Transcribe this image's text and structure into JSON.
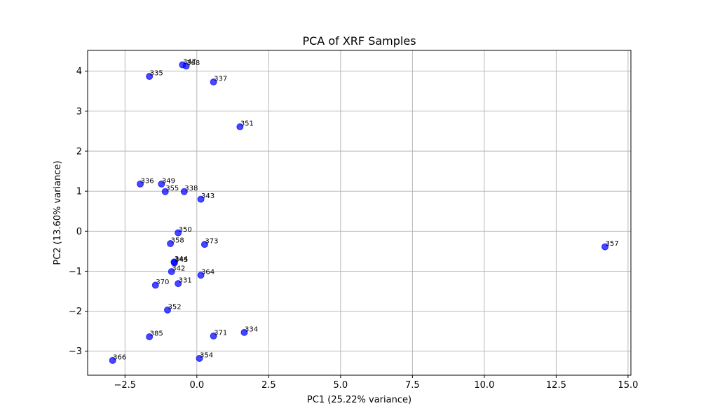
{
  "chart_data": {
    "type": "scatter",
    "title": "PCA of XRF Samples",
    "xlabel": "PC1 (25.22% variance)",
    "ylabel": "PC2 (13.60% variance)",
    "xlim": [
      -3.8,
      15.1
    ],
    "ylim": [
      -3.6,
      4.52
    ],
    "xticks": [
      -2.5,
      0.0,
      2.5,
      5.0,
      7.5,
      10.0,
      12.5,
      15.0
    ],
    "xtick_labels": [
      "−2.5",
      "0.0",
      "2.5",
      "5.0",
      "7.5",
      "10.0",
      "12.5",
      "15.0"
    ],
    "yticks": [
      -3,
      -2,
      -1,
      0,
      1,
      2,
      3,
      4
    ],
    "ytick_labels": [
      "−3",
      "−2",
      "−1",
      "0",
      "1",
      "2",
      "3",
      "4"
    ],
    "grid": true,
    "marker_color": "#0000ff",
    "points": [
      {
        "label": "347",
        "x": -0.5,
        "y": 4.16
      },
      {
        "label": "368",
        "x": -0.37,
        "y": 4.13
      },
      {
        "label": "335",
        "x": -1.65,
        "y": 3.87
      },
      {
        "label": "337",
        "x": 0.58,
        "y": 3.73
      },
      {
        "label": "351",
        "x": 1.5,
        "y": 2.61
      },
      {
        "label": "336",
        "x": -1.97,
        "y": 1.18
      },
      {
        "label": "349",
        "x": -1.23,
        "y": 1.18
      },
      {
        "label": "355",
        "x": -1.1,
        "y": 0.99
      },
      {
        "label": "338",
        "x": -0.44,
        "y": 0.99
      },
      {
        "label": "343",
        "x": 0.14,
        "y": 0.8
      },
      {
        "label": "350",
        "x": -0.65,
        "y": -0.04
      },
      {
        "label": "358",
        "x": -0.92,
        "y": -0.31
      },
      {
        "label": "373",
        "x": 0.27,
        "y": -0.33
      },
      {
        "label": "357",
        "x": 14.2,
        "y": -0.39
      },
      {
        "label": "344",
        "x": -0.79,
        "y": -0.77
      },
      {
        "label": "345",
        "x": -0.78,
        "y": -0.79
      },
      {
        "label": "342",
        "x": -0.88,
        "y": -1.01
      },
      {
        "label": "364",
        "x": 0.14,
        "y": -1.1
      },
      {
        "label": "370",
        "x": -1.44,
        "y": -1.35
      },
      {
        "label": "331",
        "x": -0.65,
        "y": -1.31
      },
      {
        "label": "352",
        "x": -1.02,
        "y": -1.97
      },
      {
        "label": "334",
        "x": 1.65,
        "y": -2.53
      },
      {
        "label": "385",
        "x": -1.65,
        "y": -2.64
      },
      {
        "label": "371",
        "x": 0.58,
        "y": -2.62
      },
      {
        "label": "354",
        "x": 0.09,
        "y": -3.18
      },
      {
        "label": "366",
        "x": -2.93,
        "y": -3.23
      }
    ]
  }
}
